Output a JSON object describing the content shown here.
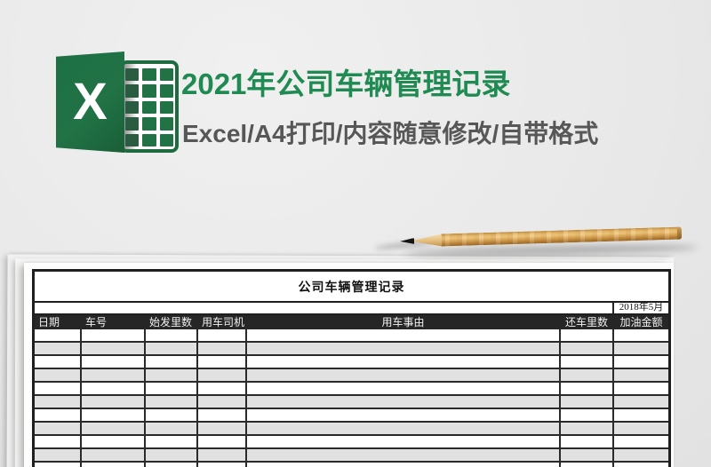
{
  "brand": {
    "logo_letter": "X",
    "title": "2021年公司车辆管理记录",
    "subtitle": "Excel/A4打印/内容随意修改/自带格式"
  },
  "sheet": {
    "title": "公司车辆管理记录",
    "period": "2018年5月",
    "columns": [
      {
        "label": "日期"
      },
      {
        "label": "车号"
      },
      {
        "label": "始发里数"
      },
      {
        "label": "用车司机"
      },
      {
        "label": "用车事由"
      },
      {
        "label": "还车里数"
      },
      {
        "label": "加油金额"
      }
    ],
    "body_rows": 11
  },
  "colors": {
    "excel_green": "#217346",
    "title_green": "#1f8a51",
    "subtitle_gray": "#575757",
    "table_border": "#1f1f1f",
    "header_row_bg": "#262626",
    "stripe_gray": "#e1e1e1",
    "background_gray": "#e9e9e9",
    "pencil_wood": "#d9a455"
  }
}
